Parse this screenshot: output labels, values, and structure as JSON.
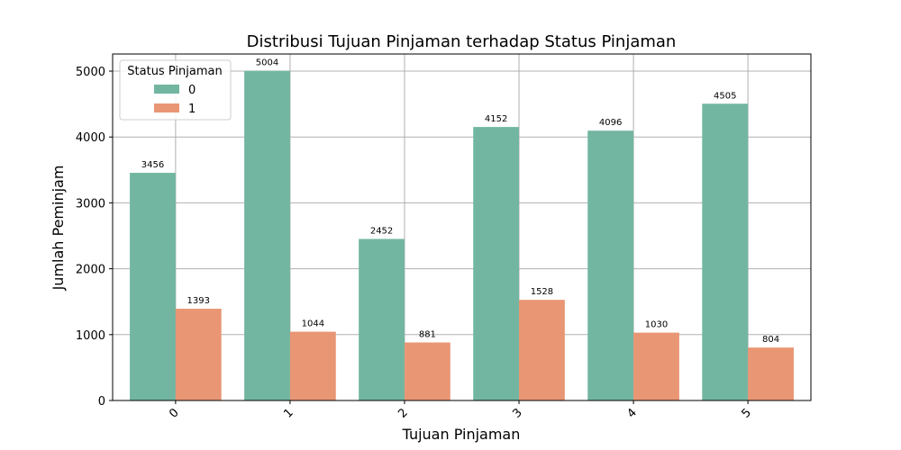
{
  "chart_data": {
    "type": "bar",
    "title": "Distribusi Tujuan Pinjaman terhadap Status Pinjaman",
    "xlabel": "Tujuan Pinjaman",
    "ylabel": "Jumlah Peminjam",
    "categories": [
      "0",
      "1",
      "2",
      "3",
      "4",
      "5"
    ],
    "series": [
      {
        "name": "0",
        "color": "#72b6a1",
        "values": [
          3456,
          5004,
          2452,
          4152,
          4096,
          4505
        ]
      },
      {
        "name": "1",
        "color": "#e99675",
        "values": [
          1393,
          1044,
          881,
          1528,
          1030,
          804
        ]
      }
    ],
    "ylim": [
      0,
      5260
    ],
    "yticks": [
      0,
      1000,
      2000,
      3000,
      4000,
      5000
    ],
    "grid": true,
    "legend": {
      "title": "Status Pinjaman",
      "position": "top-left"
    },
    "xtick_rotation": 45
  }
}
